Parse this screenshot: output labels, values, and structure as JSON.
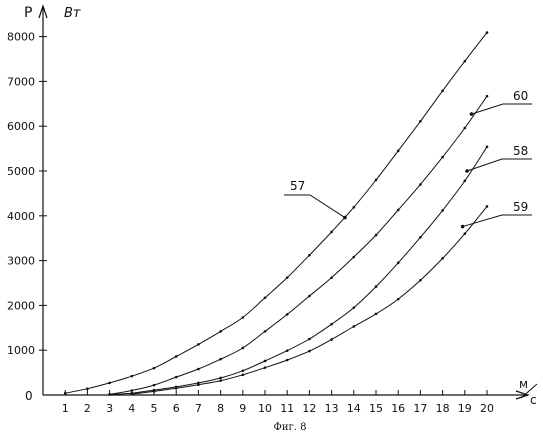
{
  "figure_caption": "Фиг. 8",
  "chart_data": {
    "type": "line",
    "title": "",
    "ylabel": "P",
    "ylabel_unit": "Вт",
    "xlabel_unit_top": "м",
    "xlabel_unit_bottom": "с",
    "origin_label": "0",
    "xlim": [
      0,
      20.8
    ],
    "ylim": [
      0,
      8600
    ],
    "x_ticks": [
      1,
      2,
      3,
      4,
      5,
      6,
      7,
      8,
      9,
      10,
      11,
      12,
      13,
      14,
      15,
      16,
      17,
      18,
      19,
      20
    ],
    "y_ticks": [
      1000,
      2000,
      3000,
      4000,
      5000,
      6000,
      7000,
      8000
    ],
    "grid": false,
    "series": [
      {
        "name": "57",
        "label_at": {
          "x": 13.6,
          "y": 3960
        },
        "points": [
          [
            1,
            40
          ],
          [
            2,
            140
          ],
          [
            3,
            270
          ],
          [
            4,
            420
          ],
          [
            5,
            600
          ],
          [
            6,
            860
          ],
          [
            7,
            1130
          ],
          [
            8,
            1420
          ],
          [
            9,
            1730
          ],
          [
            10,
            2170
          ],
          [
            11,
            2620
          ],
          [
            12,
            3120
          ],
          [
            13,
            3640
          ],
          [
            14,
            4190
          ],
          [
            15,
            4800
          ],
          [
            16,
            5450
          ],
          [
            17,
            6110
          ],
          [
            18,
            6790
          ],
          [
            19,
            7450
          ],
          [
            20,
            8090
          ]
        ]
      },
      {
        "name": "60",
        "label_at": {
          "x": 19.3,
          "y": 6270
        },
        "points": [
          [
            3,
            15
          ],
          [
            4,
            100
          ],
          [
            5,
            220
          ],
          [
            6,
            400
          ],
          [
            7,
            580
          ],
          [
            8,
            800
          ],
          [
            9,
            1050
          ],
          [
            10,
            1420
          ],
          [
            11,
            1800
          ],
          [
            12,
            2210
          ],
          [
            13,
            2620
          ],
          [
            14,
            3080
          ],
          [
            15,
            3570
          ],
          [
            16,
            4130
          ],
          [
            17,
            4700
          ],
          [
            18,
            5310
          ],
          [
            19,
            5960
          ],
          [
            20,
            6670
          ]
        ]
      },
      {
        "name": "58",
        "label_at": {
          "x": 19.1,
          "y": 5000
        },
        "points": [
          [
            3,
            10
          ],
          [
            4,
            40
          ],
          [
            5,
            110
          ],
          [
            6,
            180
          ],
          [
            7,
            270
          ],
          [
            8,
            380
          ],
          [
            9,
            540
          ],
          [
            10,
            760
          ],
          [
            11,
            990
          ],
          [
            12,
            1250
          ],
          [
            13,
            1580
          ],
          [
            14,
            1950
          ],
          [
            15,
            2420
          ],
          [
            16,
            2950
          ],
          [
            17,
            3520
          ],
          [
            18,
            4120
          ],
          [
            19,
            4780
          ],
          [
            20,
            5540
          ]
        ]
      },
      {
        "name": "59",
        "label_at": {
          "x": 18.9,
          "y": 3760
        },
        "points": [
          [
            4,
            20
          ],
          [
            5,
            80
          ],
          [
            6,
            150
          ],
          [
            7,
            230
          ],
          [
            8,
            320
          ],
          [
            9,
            450
          ],
          [
            10,
            610
          ],
          [
            11,
            780
          ],
          [
            12,
            980
          ],
          [
            13,
            1240
          ],
          [
            14,
            1530
          ],
          [
            15,
            1810
          ],
          [
            16,
            2140
          ],
          [
            17,
            2560
          ],
          [
            18,
            3050
          ],
          [
            19,
            3600
          ],
          [
            20,
            4210
          ]
        ]
      }
    ]
  }
}
